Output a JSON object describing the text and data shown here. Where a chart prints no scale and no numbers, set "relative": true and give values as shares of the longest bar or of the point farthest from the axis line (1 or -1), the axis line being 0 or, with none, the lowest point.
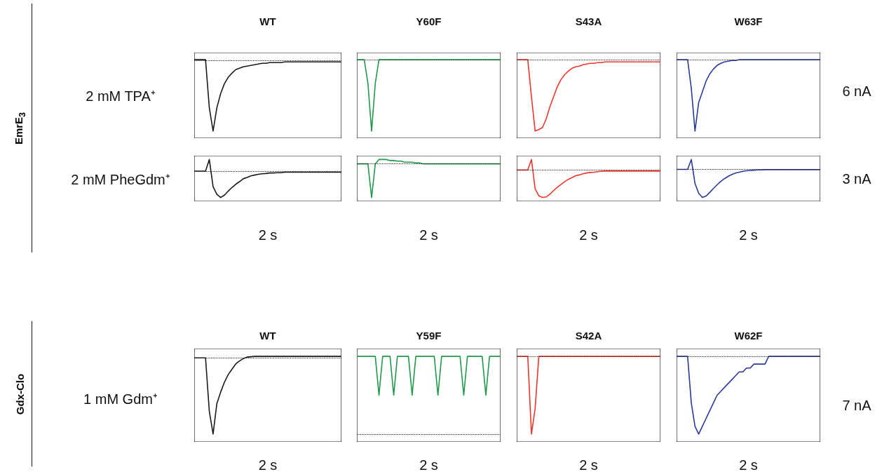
{
  "chart_data": [
    {
      "type": "line",
      "relative": true,
      "title": "WT",
      "ylabel": "2 mM TPA⁺",
      "annotations": [
        "EmrE$_{3}$"
      ],
      "categories": [
        null,
        null,
        null,
        null,
        null,
        null,
        null,
        null,
        null,
        null,
        null,
        null,
        null,
        null,
        null,
        null,
        null,
        null,
        null,
        null,
        null,
        null,
        null,
        null,
        null,
        null,
        null,
        null,
        null,
        null,
        null,
        null,
        null,
        null,
        null,
        null,
        null,
        null,
        null,
        null
      ],
      "ref_lines": [
        {
          "axis": "y",
          "value": 0,
          "color": "#222222",
          "line_style": "dotted"
        }
      ],
      "series": [
        {
          "color": "#1a1a1a",
          "values": [
            0.01,
            0.01,
            0.01,
            0.01,
            -0.67,
            -1,
            -0.67,
            -0.47,
            -0.33,
            -0.24,
            -0.18,
            -0.13,
            -0.11,
            -0.09,
            -0.08,
            -0.07,
            -0.06,
            -0.05,
            -0.04,
            -0.04,
            -0.03,
            -0.03,
            -0.03,
            -0.03,
            -0.02,
            -0.02,
            -0.02,
            -0.02,
            -0.02,
            -0.02,
            -0.02,
            -0.02,
            -0.02,
            -0.02,
            -0.02,
            -0.02,
            -0.02,
            -0.02,
            -0.02,
            -0.02
          ]
        }
      ]
    },
    {
      "type": "line",
      "relative": true,
      "title": "Y60F",
      "categories": [
        null,
        null,
        null,
        null,
        null,
        null,
        null,
        null,
        null,
        null,
        null,
        null,
        null,
        null,
        null,
        null,
        null,
        null,
        null,
        null,
        null,
        null,
        null,
        null,
        null,
        null,
        null,
        null,
        null,
        null,
        null,
        null,
        null,
        null,
        null,
        null,
        null,
        null,
        null,
        null
      ],
      "ref_lines": [
        {
          "axis": "y",
          "value": 0,
          "color": "#222222",
          "line_style": "dotted"
        }
      ],
      "series": [
        {
          "color": "#1f9a4a",
          "values": [
            0,
            0,
            0,
            -0.33,
            -1,
            -0.33,
            0,
            0,
            0,
            0,
            0,
            0,
            0,
            0,
            0,
            0,
            0,
            0,
            0,
            0,
            0,
            0,
            0,
            0,
            0,
            0,
            0,
            0,
            0,
            0,
            0,
            0,
            0,
            0,
            0,
            0,
            0,
            0,
            0,
            0
          ]
        }
      ]
    },
    {
      "type": "line",
      "relative": true,
      "title": "S43A",
      "categories": [
        null,
        null,
        null,
        null,
        null,
        null,
        null,
        null,
        null,
        null,
        null,
        null,
        null,
        null,
        null,
        null,
        null,
        null,
        null,
        null,
        null,
        null,
        null,
        null,
        null,
        null,
        null,
        null,
        null,
        null,
        null,
        null,
        null,
        null,
        null,
        null,
        null,
        null,
        null,
        null
      ],
      "ref_lines": [
        {
          "axis": "y",
          "value": 0,
          "color": "#222222",
          "line_style": "dotted"
        }
      ],
      "series": [
        {
          "color": "#f0362c",
          "values": [
            0,
            0,
            0,
            0,
            -0.52,
            -1,
            -0.98,
            -0.95,
            -0.83,
            -0.66,
            -0.52,
            -0.38,
            -0.28,
            -0.21,
            -0.16,
            -0.12,
            -0.1,
            -0.09,
            -0.07,
            -0.06,
            -0.05,
            -0.05,
            -0.04,
            -0.04,
            -0.03,
            -0.03,
            -0.03,
            -0.03,
            -0.03,
            -0.03,
            -0.03,
            -0.03,
            -0.03,
            -0.03,
            -0.03,
            -0.03,
            -0.03,
            -0.03,
            -0.03,
            -0.03
          ]
        }
      ]
    },
    {
      "type": "line",
      "relative": true,
      "title": "W63F",
      "y2label": "6 nA",
      "categories": [
        null,
        null,
        null,
        null,
        null,
        null,
        null,
        null,
        null,
        null,
        null,
        null,
        null,
        null,
        null,
        null,
        null,
        null,
        null,
        null,
        null,
        null,
        null,
        null,
        null,
        null,
        null,
        null,
        null,
        null,
        null,
        null,
        null,
        null,
        null,
        null,
        null,
        null,
        null,
        null
      ],
      "ref_lines": [
        {
          "axis": "y",
          "value": 0,
          "color": "#222222",
          "line_style": "dotted"
        }
      ],
      "series": [
        {
          "color": "#2a3a9a",
          "values": [
            0,
            0,
            0,
            0,
            -0.4,
            -1,
            -0.6,
            -0.45,
            -0.3,
            -0.2,
            -0.13,
            -0.08,
            -0.05,
            -0.03,
            -0.02,
            -0.01,
            -0.01,
            0,
            0,
            0,
            0,
            0,
            0,
            0,
            0,
            0,
            0,
            0,
            0,
            0,
            0,
            0,
            0,
            0,
            0,
            0,
            0,
            0,
            0,
            0
          ]
        }
      ]
    },
    {
      "type": "line",
      "relative": true,
      "ylabel": "2 mM PheGdm⁺",
      "xlabel": "2 s",
      "categories": [
        null,
        null,
        null,
        null,
        null,
        null,
        null,
        null,
        null,
        null,
        null,
        null,
        null,
        null,
        null,
        null,
        null,
        null,
        null,
        null,
        null,
        null,
        null,
        null,
        null,
        null,
        null,
        null,
        null,
        null,
        null,
        null,
        null,
        null,
        null,
        null,
        null,
        null,
        null,
        null
      ],
      "ref_lines": [
        {
          "axis": "y",
          "value": 0,
          "color": "#222222",
          "line_style": "dotted"
        }
      ],
      "series": [
        {
          "color": "#1a1a1a",
          "values": [
            0,
            0,
            0,
            0,
            0.44,
            -0.59,
            -0.88,
            -1,
            -0.91,
            -0.76,
            -0.62,
            -0.5,
            -0.4,
            -0.29,
            -0.24,
            -0.18,
            -0.15,
            -0.12,
            -0.1,
            -0.09,
            -0.07,
            -0.07,
            -0.06,
            -0.06,
            -0.04,
            -0.04,
            -0.04,
            -0.04,
            -0.04,
            -0.04,
            -0.04,
            -0.04,
            -0.04,
            -0.04,
            -0.04,
            -0.04,
            -0.04,
            -0.04,
            -0.04,
            -0.04
          ]
        }
      ]
    },
    {
      "type": "line",
      "relative": true,
      "xlabel": "2 s",
      "categories": [
        null,
        null,
        null,
        null,
        null,
        null,
        null,
        null,
        null,
        null,
        null,
        null,
        null,
        null,
        null,
        null,
        null,
        null,
        null,
        null,
        null,
        null,
        null,
        null,
        null,
        null,
        null,
        null,
        null,
        null,
        null,
        null,
        null,
        null,
        null,
        null,
        null,
        null,
        null,
        null
      ],
      "ref_lines": [
        {
          "axis": "y",
          "value": 0,
          "color": "#222222",
          "line_style": "dotted"
        }
      ],
      "series": [
        {
          "color": "#1f9a4a",
          "values": [
            0,
            0,
            0,
            0,
            -1,
            0,
            0.13,
            0.13,
            0.13,
            0.1,
            0.1,
            0.08,
            0.08,
            0.05,
            0.05,
            0.05,
            0.03,
            0.03,
            0,
            0,
            0,
            0,
            0,
            0,
            0,
            0,
            0,
            0,
            0,
            0,
            0,
            0,
            0,
            0,
            0,
            0,
            0,
            0,
            0,
            0
          ]
        }
      ]
    },
    {
      "type": "line",
      "relative": true,
      "xlabel": "2 s",
      "categories": [
        null,
        null,
        null,
        null,
        null,
        null,
        null,
        null,
        null,
        null,
        null,
        null,
        null,
        null,
        null,
        null,
        null,
        null,
        null,
        null,
        null,
        null,
        null,
        null,
        null,
        null,
        null,
        null,
        null,
        null,
        null,
        null,
        null,
        null,
        null,
        null,
        null,
        null,
        null,
        null
      ],
      "ref_lines": [
        {
          "axis": "y",
          "value": 0,
          "color": "#222222",
          "line_style": "dotted"
        }
      ],
      "series": [
        {
          "color": "#f0362c",
          "values": [
            0,
            0,
            0,
            0,
            0.38,
            -0.69,
            -0.94,
            -1,
            -0.98,
            -0.88,
            -0.75,
            -0.63,
            -0.53,
            -0.43,
            -0.34,
            -0.28,
            -0.21,
            -0.18,
            -0.14,
            -0.11,
            -0.09,
            -0.08,
            -0.06,
            -0.05,
            -0.04,
            -0.04,
            -0.04,
            -0.04,
            -0.04,
            -0.04,
            -0.04,
            -0.04,
            -0.04,
            -0.04,
            -0.04,
            -0.04,
            -0.04,
            -0.04,
            -0.04,
            -0.04
          ]
        }
      ]
    },
    {
      "type": "line",
      "relative": true,
      "xlabel": "2 s",
      "y2label": "3 nA",
      "categories": [
        null,
        null,
        null,
        null,
        null,
        null,
        null,
        null,
        null,
        null,
        null,
        null,
        null,
        null,
        null,
        null,
        null,
        null,
        null,
        null,
        null,
        null,
        null,
        null,
        null,
        null,
        null,
        null,
        null,
        null,
        null,
        null,
        null,
        null,
        null,
        null,
        null,
        null,
        null,
        null
      ],
      "ref_lines": [
        {
          "axis": "y",
          "value": 0,
          "color": "#222222",
          "line_style": "dotted"
        }
      ],
      "series": [
        {
          "color": "#2a3a9a",
          "values": [
            0,
            0,
            0,
            0,
            0.35,
            -0.5,
            -0.85,
            -1,
            -0.95,
            -0.82,
            -0.68,
            -0.55,
            -0.43,
            -0.33,
            -0.25,
            -0.18,
            -0.13,
            -0.1,
            -0.07,
            -0.05,
            -0.04,
            -0.03,
            -0.02,
            -0.02,
            -0.01,
            -0.01,
            -0.01,
            -0.01,
            -0.01,
            -0.01,
            -0.01,
            -0.01,
            -0.01,
            -0.01,
            -0.01,
            -0.01,
            -0.01,
            -0.01,
            -0.01,
            -0.01
          ]
        }
      ]
    },
    {
      "type": "line",
      "relative": true,
      "title": "WT",
      "ylabel": "1 mM Gdm⁺",
      "xlabel": "2 s",
      "annotations": [
        "Gdx-Clo"
      ],
      "categories": [
        null,
        null,
        null,
        null,
        null,
        null,
        null,
        null,
        null,
        null,
        null,
        null,
        null,
        null,
        null,
        null,
        null,
        null,
        null,
        null,
        null,
        null,
        null,
        null,
        null,
        null,
        null,
        null,
        null,
        null,
        null,
        null,
        null,
        null,
        null,
        null,
        null,
        null,
        null,
        null
      ],
      "ref_lines": [
        {
          "axis": "y",
          "value": 0,
          "color": "#222222",
          "line_style": "dotted"
        }
      ],
      "series": [
        {
          "color": "#1a1a1a",
          "values": [
            0,
            0,
            0,
            0,
            -0.7,
            -1,
            -0.6,
            -0.45,
            -0.32,
            -0.22,
            -0.15,
            -0.08,
            -0.04,
            -0.01,
            0.01,
            0.015,
            0.02,
            0.02,
            0.02,
            0.02,
            0.02,
            0.02,
            0.02,
            0.02,
            0.02,
            0.02,
            0.02,
            0.02,
            0.02,
            0.02,
            0.02,
            0.02,
            0.02,
            0.02,
            0.02,
            0.02,
            0.02,
            0.02,
            0.02,
            0.02
          ]
        }
      ]
    },
    {
      "type": "line",
      "relative": true,
      "title": "Y59F",
      "xlabel": "2 s",
      "categories": [
        null,
        null,
        null,
        null,
        null,
        null,
        null,
        null,
        null,
        null,
        null,
        null,
        null,
        null,
        null,
        null,
        null,
        null,
        null,
        null,
        null,
        null,
        null,
        null,
        null,
        null,
        null,
        null,
        null,
        null,
        null,
        null,
        null,
        null,
        null,
        null,
        null,
        null,
        null,
        null
      ],
      "ref_lines": [
        {
          "axis": "y",
          "value": 0,
          "color": "#222222",
          "line_style": "dotted"
        }
      ],
      "series": [
        {
          "color": "#1f9a4a",
          "values": [
            1,
            1,
            1,
            1,
            1,
            1,
            0.5,
            1,
            1,
            1,
            0.5,
            1,
            1,
            1,
            1,
            0.5,
            1,
            1,
            1,
            1,
            1,
            1,
            0.5,
            1,
            1,
            1,
            1,
            1,
            1,
            0.5,
            1,
            1,
            1,
            1,
            1,
            0.5,
            1,
            1,
            1,
            1
          ]
        }
      ]
    },
    {
      "type": "line",
      "relative": true,
      "title": "S42A",
      "xlabel": "2 s",
      "categories": [
        null,
        null,
        null,
        null,
        null,
        null,
        null,
        null,
        null,
        null,
        null,
        null,
        null,
        null,
        null,
        null,
        null,
        null,
        null,
        null,
        null,
        null,
        null,
        null,
        null,
        null,
        null,
        null,
        null,
        null,
        null,
        null,
        null,
        null,
        null,
        null,
        null,
        null,
        null,
        null
      ],
      "ref_lines": [
        {
          "axis": "y",
          "value": 0,
          "color": "#222222",
          "line_style": "dotted"
        }
      ],
      "series": [
        {
          "color": "#f0362c",
          "values": [
            0,
            0,
            0,
            0,
            -1,
            -0.67,
            0,
            0,
            0,
            0,
            0,
            0,
            0,
            0,
            0,
            0,
            0,
            0,
            0,
            0,
            0,
            0,
            0,
            0,
            0,
            0,
            0,
            0,
            0,
            0,
            0,
            0,
            0,
            0,
            0,
            0,
            0,
            0,
            0,
            0
          ]
        }
      ]
    },
    {
      "type": "line",
      "relative": true,
      "title": "W62F",
      "xlabel": "2 s",
      "y2label": "7 nA",
      "categories": [
        null,
        null,
        null,
        null,
        null,
        null,
        null,
        null,
        null,
        null,
        null,
        null,
        null,
        null,
        null,
        null,
        null,
        null,
        null,
        null,
        null,
        null,
        null,
        null,
        null,
        null,
        null,
        null,
        null,
        null,
        null,
        null,
        null,
        null,
        null,
        null,
        null,
        null,
        null,
        null
      ],
      "ref_lines": [
        {
          "axis": "y",
          "value": 0,
          "color": "#222222",
          "line_style": "dotted"
        }
      ],
      "series": [
        {
          "color": "#2a3a9a",
          "values": [
            0,
            0,
            0,
            0,
            -0.6,
            -0.9,
            -1,
            -0.9,
            -0.8,
            -0.7,
            -0.6,
            -0.5,
            -0.45,
            -0.4,
            -0.35,
            -0.3,
            -0.25,
            -0.2,
            -0.2,
            -0.15,
            -0.15,
            -0.1,
            -0.1,
            -0.1,
            -0.1,
            0,
            0,
            0,
            0,
            0,
            0,
            0,
            0,
            0,
            0,
            0,
            0,
            0,
            0,
            0
          ]
        }
      ]
    }
  ]
}
